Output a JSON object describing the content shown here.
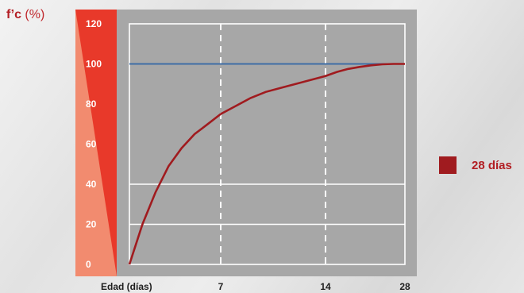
{
  "chart_data": {
    "type": "line",
    "ylabel": "f’c",
    "ylabel_unit": "(%)",
    "xlabel": "Edad (días)",
    "x_ticks": [
      "7",
      "14",
      "28"
    ],
    "y_ticks": [
      "0",
      "20",
      "40",
      "60",
      "80",
      "100",
      "120"
    ],
    "ylim": [
      0,
      120
    ],
    "series": [
      {
        "name": "28 días",
        "color": "#a01b1f",
        "points": [
          [
            0,
            0
          ],
          [
            1,
            20
          ],
          [
            2,
            36
          ],
          [
            3,
            49
          ],
          [
            4,
            58
          ],
          [
            5,
            65
          ],
          [
            6,
            70
          ],
          [
            7,
            75
          ],
          [
            8,
            79
          ],
          [
            9,
            83
          ],
          [
            10,
            86
          ],
          [
            11,
            88
          ],
          [
            12,
            90
          ],
          [
            13,
            92
          ],
          [
            14,
            94
          ],
          [
            16,
            96
          ],
          [
            18,
            97.5
          ],
          [
            20,
            98.5
          ],
          [
            22,
            99.3
          ],
          [
            24,
            99.8
          ],
          [
            26,
            100
          ],
          [
            28,
            100
          ]
        ]
      }
    ],
    "reference_line": {
      "y": 100,
      "color": "#3f6ea6"
    },
    "colors": {
      "plot_bg": "#a7a7a7",
      "strip_dark": "#e8392a",
      "strip_light": "#f28b6f"
    }
  }
}
